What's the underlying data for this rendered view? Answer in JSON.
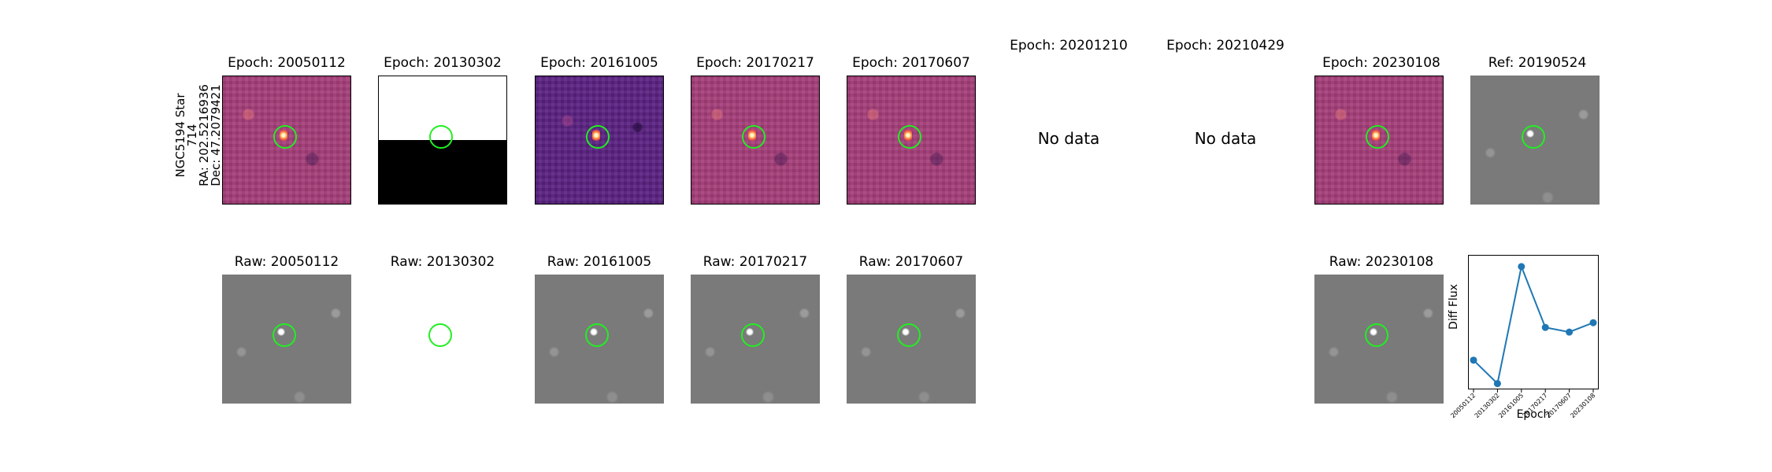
{
  "side_label": {
    "line1": "NGC5194 Star 714",
    "line2": "RA: 202.5216936",
    "line3": "Dec: 47.2079421"
  },
  "top_row": [
    {
      "title": "Epoch: 20050112",
      "status": "data"
    },
    {
      "title": "Epoch: 20130302",
      "status": "data"
    },
    {
      "title": "Epoch: 20161005",
      "status": "data"
    },
    {
      "title": "Epoch: 20170217",
      "status": "data"
    },
    {
      "title": "Epoch: 20170607",
      "status": "data"
    },
    {
      "title": "Epoch: 20201210",
      "status": "nodata",
      "message": "No data"
    },
    {
      "title": "Epoch: 20210429",
      "status": "nodata",
      "message": "No data"
    },
    {
      "title": "Epoch: 20230108",
      "status": "data"
    },
    {
      "title": "Ref: 20190524",
      "status": "data"
    }
  ],
  "bottom_row": [
    {
      "title": "Raw: 20050112"
    },
    {
      "title": "Raw: 20130302"
    },
    {
      "title": "Raw: 20161005"
    },
    {
      "title": "Raw: 20170217"
    },
    {
      "title": "Raw: 20170607"
    },
    {
      "title": "Raw: 20230108"
    }
  ],
  "colors": {
    "circle": "#22ee22",
    "line": "#1f77b4"
  },
  "chart_data": {
    "type": "line",
    "xlabel": "Epoch",
    "ylabel": "Diff Flux",
    "categories": [
      "20050112",
      "20130302",
      "20161005",
      "20170217",
      "20170607",
      "20230108"
    ],
    "values": [
      0.2,
      0.0,
      1.0,
      0.48,
      0.44,
      0.52
    ],
    "ylim": [
      -0.05,
      1.1
    ],
    "grid": false
  }
}
